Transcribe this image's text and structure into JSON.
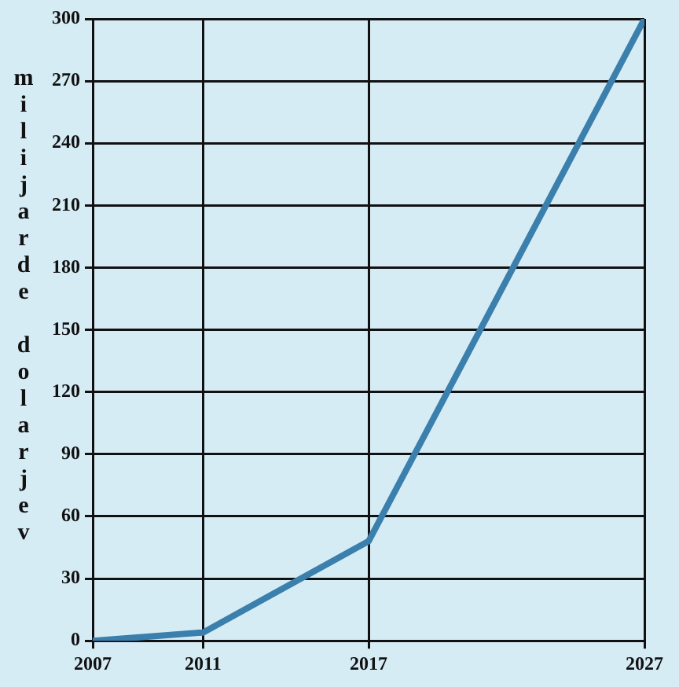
{
  "chart_data": {
    "type": "line",
    "ylabel": "milijarde dolarjev",
    "x": [
      2007,
      2011,
      2017,
      2027
    ],
    "series": [
      {
        "color": "#3b7fad",
        "values": [
          0,
          4,
          48,
          300
        ]
      }
    ],
    "xlim": [
      2007,
      2027
    ],
    "xticks": [
      2007,
      2011,
      2017,
      2027
    ],
    "ylim": [
      0,
      300
    ],
    "yticks": [
      0,
      30,
      60,
      90,
      120,
      150,
      180,
      210,
      240,
      270,
      300
    ],
    "grid": true,
    "legend": false,
    "marker": "none",
    "line_style": "solid"
  }
}
